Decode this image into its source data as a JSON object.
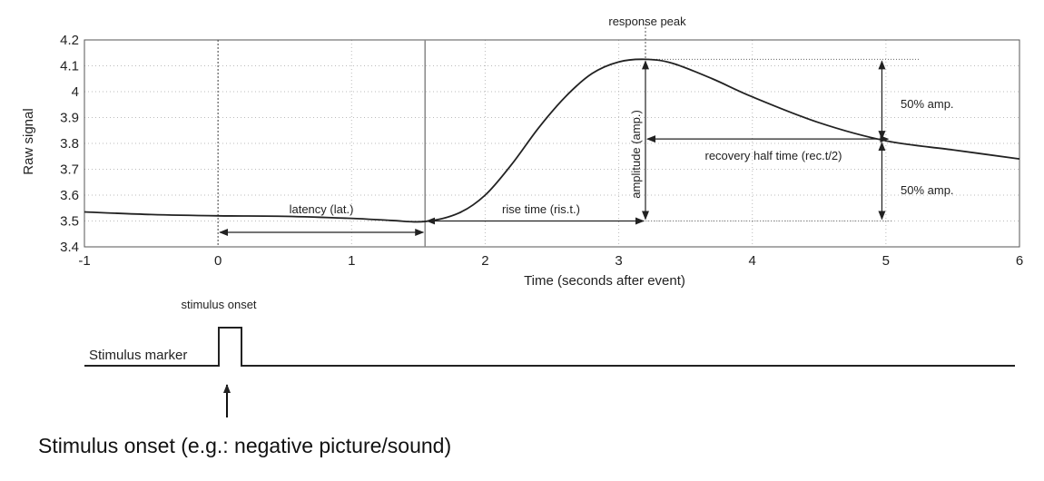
{
  "chart_data": {
    "type": "line",
    "xlabel": "Time (seconds after event)",
    "ylabel": "Raw signal",
    "xlim": [
      -1,
      6
    ],
    "ylim": [
      3.4,
      4.2
    ],
    "xticks": [
      "-1",
      "0",
      "1",
      "2",
      "3",
      "4",
      "5",
      "6"
    ],
    "yticks": [
      "3.4",
      "3.5",
      "3.6",
      "3.7",
      "3.8",
      "3.9",
      "4",
      "4.1",
      "4.2"
    ],
    "grid": true,
    "series": [
      {
        "x": [
          -1,
          -0.5,
          0,
          0.5,
          1,
          1.3,
          1.55,
          1.8,
          2.0,
          2.2,
          2.4,
          2.6,
          2.8,
          3.0,
          3.2,
          3.4,
          3.7,
          4.0,
          4.5,
          5.0,
          5.5,
          6.0
        ],
        "y": [
          3.535,
          3.525,
          3.52,
          3.518,
          3.51,
          3.502,
          3.498,
          3.53,
          3.6,
          3.72,
          3.86,
          3.98,
          4.07,
          4.115,
          4.125,
          4.11,
          4.05,
          3.98,
          3.88,
          3.81,
          3.775,
          3.74
        ]
      }
    ],
    "reference_lines": {
      "stimulus_onset_x": 0,
      "rise_start_x": 1.55,
      "peak_x": 3.2,
      "recovery_x": 5.03,
      "peak_y": 4.125,
      "baseline_y": 3.5,
      "half_y": 3.81
    },
    "annotations": {
      "response_peak": "response peak",
      "latency": "latency (lat.)",
      "rise_time": "rise time (ris.t.)",
      "amplitude": "amplitude (amp.)",
      "recovery": "recovery half time (rec.t/2)",
      "half_amp_top": "50% amp.",
      "half_amp_bottom": "50% amp.",
      "stimulus_onset": "stimulus onset",
      "stimulus_marker": "Stimulus marker"
    }
  },
  "caption": "Stimulus onset (e.g.: negative picture/sound)"
}
